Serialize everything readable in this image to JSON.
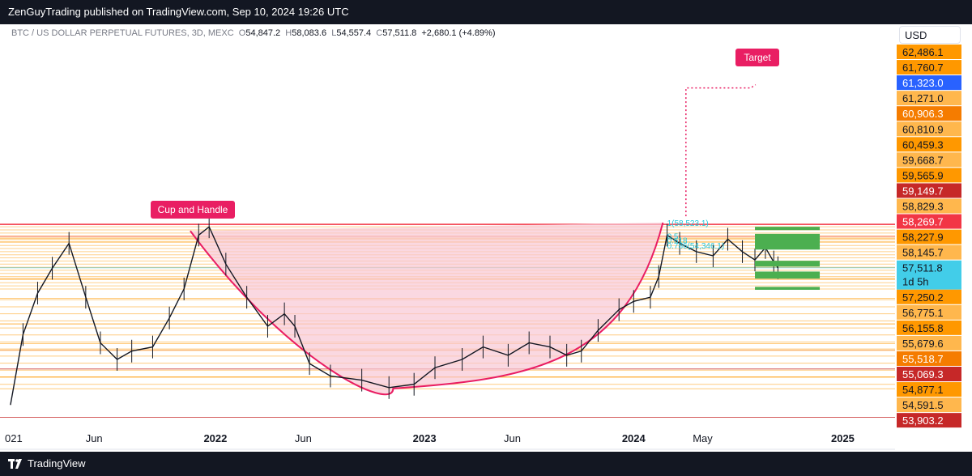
{
  "header": {
    "published_line": "ZenGuyTrading published on TradingView.com, Sep 10, 2024 19:26 UTC"
  },
  "legend": {
    "symbol": "BTC / US DOLLAR PERPETUAL FUTURES, 3D, MEXC",
    "o_label": "O",
    "o_value": "54,847.2",
    "h_label": "H",
    "h_value": "58,083.6",
    "l_label": "L",
    "l_value": "54,557.4",
    "c_label": "C",
    "c_value": "57,511.8",
    "change": "+2,680.1 (+4.89%)"
  },
  "currency_button": "USD",
  "footer": {
    "brand": "TradingView"
  },
  "annotations": {
    "cup_label": "Cup and Handle",
    "target_label": "Target",
    "countdown": "1d 5h"
  },
  "colors": {
    "cup_fill": "#f8c8d4",
    "cup_curve": "#e91e63",
    "label_bg": "#e91e63",
    "resistance_line": "#f23645",
    "level_line": "#ff9800",
    "green_zone": "#4caf50",
    "fib_text": "#26c6da",
    "current_price_bg": "#42cde9"
  },
  "chart_data": {
    "type": "line",
    "title": "",
    "xlabel": "",
    "ylabel": "",
    "ylim": [
      53620,
      62800
    ],
    "x_ticks": [
      "021",
      "Jun",
      "2022",
      "Jun",
      "2023",
      "Jun",
      "2024",
      "May",
      "2025"
    ],
    "price_path": [
      [
        2021.02,
        54200
      ],
      [
        2021.08,
        55900
      ],
      [
        2021.15,
        56900
      ],
      [
        2021.22,
        57500
      ],
      [
        2021.3,
        58100
      ],
      [
        2021.38,
        56800
      ],
      [
        2021.45,
        55700
      ],
      [
        2021.53,
        55300
      ],
      [
        2021.6,
        55500
      ],
      [
        2021.7,
        55600
      ],
      [
        2021.78,
        56300
      ],
      [
        2021.85,
        57000
      ],
      [
        2021.92,
        58300
      ],
      [
        2021.97,
        58500
      ],
      [
        2022.05,
        57600
      ],
      [
        2022.15,
        56800
      ],
      [
        2022.25,
        56100
      ],
      [
        2022.33,
        56400
      ],
      [
        2022.38,
        56100
      ],
      [
        2022.45,
        55200
      ],
      [
        2022.55,
        54900
      ],
      [
        2022.7,
        54800
      ],
      [
        2022.83,
        54620
      ],
      [
        2022.95,
        54700
      ],
      [
        2023.05,
        55100
      ],
      [
        2023.18,
        55300
      ],
      [
        2023.28,
        55600
      ],
      [
        2023.4,
        55400
      ],
      [
        2023.5,
        55700
      ],
      [
        2023.6,
        55600
      ],
      [
        2023.68,
        55400
      ],
      [
        2023.75,
        55500
      ],
      [
        2023.83,
        56000
      ],
      [
        2023.93,
        56500
      ],
      [
        2024.0,
        56700
      ],
      [
        2024.08,
        56800
      ],
      [
        2024.12,
        57300
      ],
      [
        2024.16,
        58300
      ],
      [
        2024.22,
        58100
      ],
      [
        2024.3,
        57900
      ],
      [
        2024.38,
        57800
      ],
      [
        2024.45,
        58200
      ],
      [
        2024.52,
        57900
      ],
      [
        2024.58,
        57700
      ],
      [
        2024.63,
        58000
      ],
      [
        2024.67,
        57650
      ],
      [
        2024.69,
        57511.8
      ]
    ],
    "cup_curve": [
      [
        2021.88,
        58400
      ],
      [
        2022.35,
        55200
      ],
      [
        2022.85,
        54600
      ],
      [
        2023.5,
        55200
      ],
      [
        2024.14,
        58600
      ]
    ],
    "resistance_level": 58560,
    "target_level": 61850,
    "fib_labels": [
      {
        "text": "1(58,523.1)",
        "price": 58523.1
      },
      {
        "text": "0.786(54,346.1)",
        "price": 57980
      },
      {
        "text": "0.618",
        "price": 58100
      },
      {
        "text": "0.5",
        "price": 58200
      }
    ],
    "price_axis_labels": [
      {
        "value": "62,486.1",
        "color": "#ff9800"
      },
      {
        "value": "61,760.7",
        "color": "#ff9800"
      },
      {
        "value": "61,323.0",
        "color": "#2962ff"
      },
      {
        "value": "61,271.0",
        "color": "#ffb74d"
      },
      {
        "value": "60,906.3",
        "color": "#f57c00"
      },
      {
        "value": "60,810.9",
        "color": "#ffb74d"
      },
      {
        "value": "60,459.3",
        "color": "#ff9800"
      },
      {
        "value": "59,668.7",
        "color": "#ffb74d"
      },
      {
        "value": "59,565.9",
        "color": "#ff9800"
      },
      {
        "value": "59,149.7",
        "color": "#c62828"
      },
      {
        "value": "58,829.3",
        "color": "#ffb74d"
      },
      {
        "value": "58,269.7",
        "color": "#f23645"
      },
      {
        "value": "58,227.9",
        "color": "#ff9800"
      },
      {
        "value": "58,145.7",
        "color": "#ffb74d"
      },
      {
        "value": "57,511.8",
        "color": "#42cde9"
      },
      {
        "value": "57,250.2",
        "color": "#ff9800"
      },
      {
        "value": "56,775.1",
        "color": "#ffb74d"
      },
      {
        "value": "56,155.8",
        "color": "#ff9800"
      },
      {
        "value": "55,679.6",
        "color": "#ffb74d"
      },
      {
        "value": "55,518.7",
        "color": "#f57c00"
      },
      {
        "value": "55,069.3",
        "color": "#c62828"
      },
      {
        "value": "54,877.1",
        "color": "#ff9800"
      },
      {
        "value": "54,591.5",
        "color": "#ffb74d"
      },
      {
        "value": "53,903.2",
        "color": "#c62828"
      }
    ]
  }
}
